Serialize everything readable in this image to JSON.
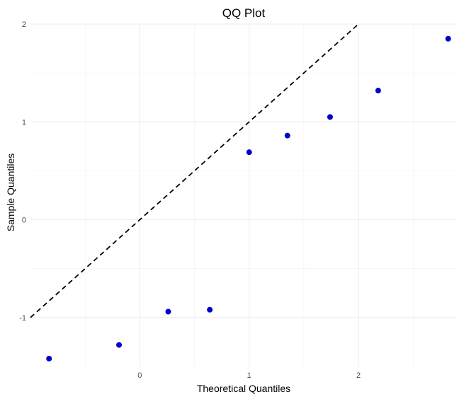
{
  "chart_data": {
    "type": "scatter",
    "title": "QQ Plot",
    "xlabel": "Theoretical Quantiles",
    "ylabel": "Sample Quantiles",
    "xlim": [
      -1.0,
      2.9
    ],
    "ylim": [
      -1.5,
      2.0
    ],
    "x_ticks": [
      0,
      1,
      2
    ],
    "y_ticks": [
      -1,
      0,
      1,
      2
    ],
    "grid": true,
    "points": [
      {
        "x": -0.83,
        "y": -1.42
      },
      {
        "x": -0.19,
        "y": -1.28
      },
      {
        "x": 0.26,
        "y": -0.94
      },
      {
        "x": 0.64,
        "y": -0.92
      },
      {
        "x": 1.0,
        "y": 0.69
      },
      {
        "x": 1.35,
        "y": 0.86
      },
      {
        "x": 1.74,
        "y": 1.05
      },
      {
        "x": 2.18,
        "y": 1.32
      },
      {
        "x": 2.82,
        "y": 1.85
      }
    ],
    "reference_line": {
      "intercept": 0,
      "slope": 1,
      "style": "dashed",
      "color": "#000000"
    },
    "point_color": "#0000cc"
  }
}
